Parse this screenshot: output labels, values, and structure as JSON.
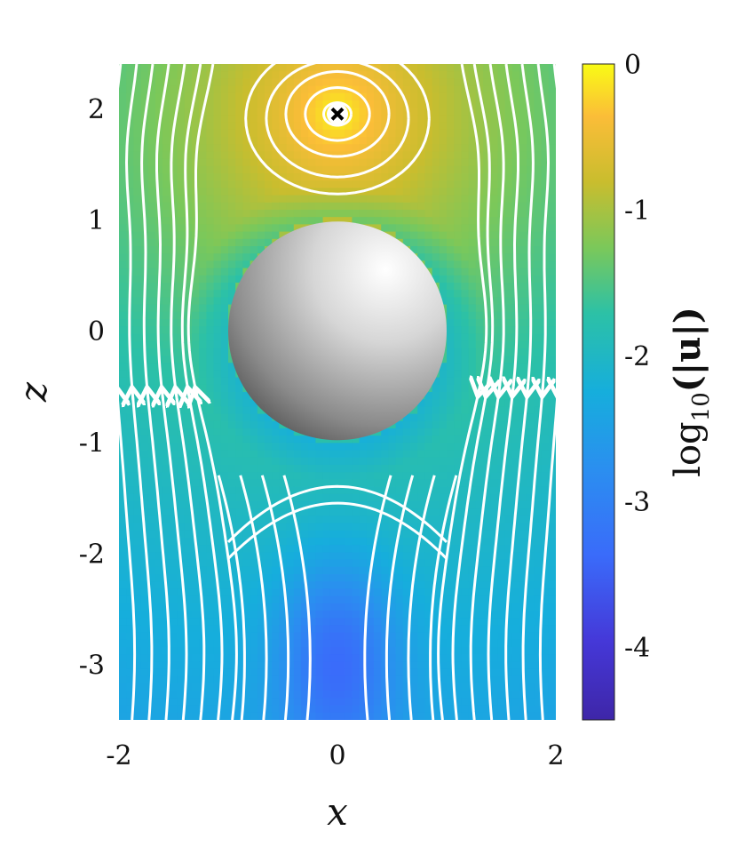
{
  "chart_data": {
    "type": "heatmap",
    "title": "",
    "xlabel": "x",
    "ylabel": "z",
    "xlim": [
      -2,
      2
    ],
    "ylim": [
      -3.5,
      2.4
    ],
    "xticks": [
      "-2",
      "0",
      "2"
    ],
    "yticks": [
      "-3",
      "-2",
      "-1",
      "0",
      "1",
      "2"
    ],
    "colorbar": {
      "label_main": "log",
      "label_sub": "10",
      "label_tail": "(|u|)",
      "range": [
        -4.5,
        0
      ],
      "ticks": [
        "-4",
        "-3",
        "-2",
        "-1",
        "0"
      ],
      "colormap": "parula"
    },
    "sphere": {
      "center": [
        0,
        0
      ],
      "radius": 1
    },
    "point_source": {
      "position": [
        0,
        1.95
      ],
      "marker": "x"
    },
    "stagnation_point": [
      0,
      -2.95
    ],
    "streamline_color": "#ffffff"
  }
}
